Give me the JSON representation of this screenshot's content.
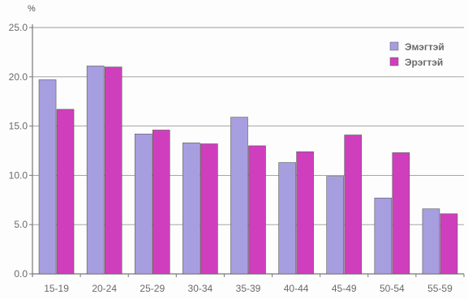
{
  "chart_data": {
    "type": "bar",
    "ylabel": "%",
    "ylim": [
      0,
      25
    ],
    "yticks": [
      "0.0",
      "5.0",
      "10.0",
      "15.0",
      "20.0",
      "25.0"
    ],
    "categories": [
      "15-19",
      "20-24",
      "25-29",
      "30-34",
      "35-39",
      "40-44",
      "45-49",
      "50-54",
      "55-59"
    ],
    "series": [
      {
        "name": "Эмэгтэй",
        "color": "#a79ee0",
        "values": [
          19.7,
          21.1,
          14.2,
          13.3,
          15.9,
          11.3,
          9.9,
          7.7,
          6.6
        ]
      },
      {
        "name": "Эрэгтэй",
        "color": "#cf3fbd",
        "values": [
          16.7,
          21.0,
          14.6,
          13.2,
          13.0,
          12.4,
          14.1,
          12.3,
          6.1
        ]
      }
    ],
    "grid": true,
    "legend_position": "top-right"
  }
}
